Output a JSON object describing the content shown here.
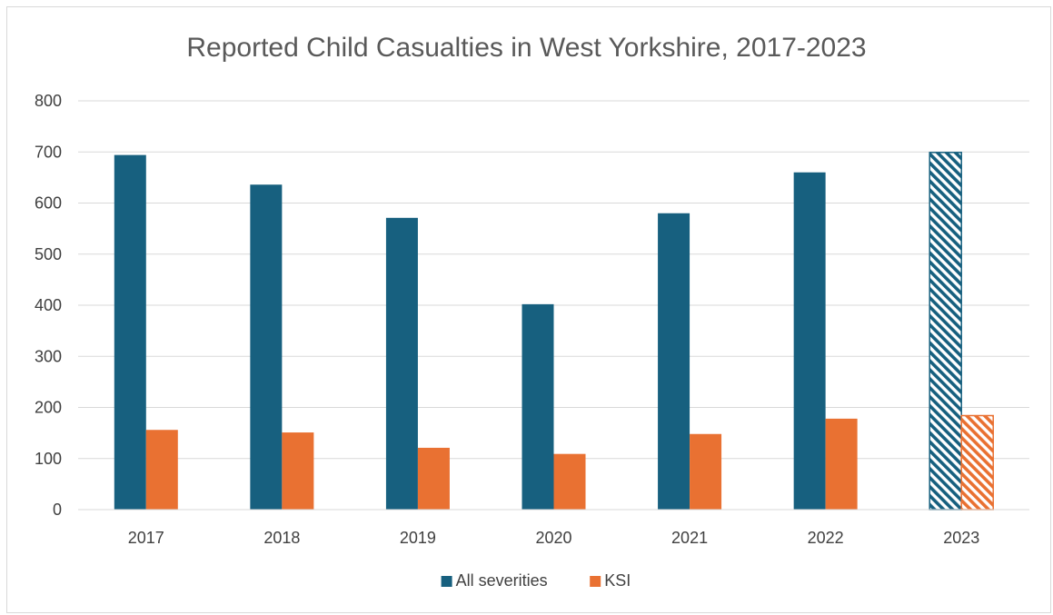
{
  "chart_data": {
    "type": "bar",
    "title": "Reported Child Casualties in West Yorkshire, 2017-2023",
    "xlabel": "",
    "ylabel": "",
    "categories": [
      "2017",
      "2018",
      "2019",
      "2020",
      "2021",
      "2022",
      "2023"
    ],
    "ylim": [
      0,
      800
    ],
    "yticks": [
      "0",
      "100",
      "200",
      "300",
      "400",
      "500",
      "600",
      "700",
      "800"
    ],
    "grid": true,
    "legend_position": "bottom",
    "series": [
      {
        "name": "All severities",
        "color": "#17607f",
        "values": [
          694,
          636,
          571,
          402,
          580,
          660,
          699
        ],
        "hatched_categories": [
          "2023"
        ]
      },
      {
        "name": "KSI",
        "color": "#e97132",
        "values": [
          156,
          151,
          121,
          109,
          148,
          178,
          184
        ],
        "hatched_categories": [
          "2023"
        ]
      }
    ]
  }
}
